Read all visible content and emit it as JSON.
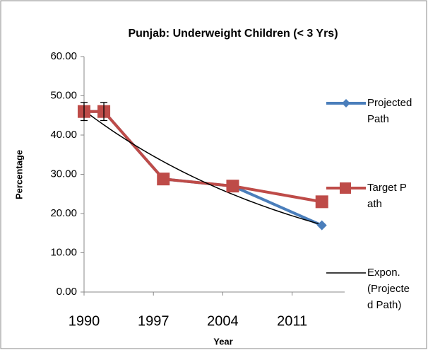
{
  "chart_data": {
    "type": "line",
    "title": "Punjab: Underweight Children (< 3 Yrs)",
    "xlabel": "Year",
    "ylabel": "Percentage",
    "x": [
      1990,
      1992,
      1998,
      2005,
      2014
    ],
    "series": [
      {
        "name": "Projected Path",
        "color": "#4a7ebb",
        "marker": "diamond",
        "values": [
          46,
          46,
          28.8,
          27,
          17
        ]
      },
      {
        "name": "Target Path",
        "color": "#be4b48",
        "marker": "square",
        "values": [
          46,
          46,
          28.8,
          27,
          23
        ],
        "errors": [
          2.3,
          2.3,
          null,
          null,
          null
        ]
      }
    ],
    "trendline": {
      "name": "Expon. (Projected Path)",
      "color": "#000000",
      "series": 0
    },
    "xlim": [
      1990,
      2016.3
    ],
    "xticks": [
      1990,
      1997,
      2004,
      2011
    ],
    "ylim": [
      0,
      60
    ],
    "yticks": [
      {
        "value": 0,
        "label": "0.00"
      },
      {
        "value": 10,
        "label": "10.00"
      },
      {
        "value": 20,
        "label": "20.00"
      },
      {
        "value": 30,
        "label": "30.00"
      },
      {
        "value": 40,
        "label": "40.00"
      },
      {
        "value": 50,
        "label": "50.00"
      },
      {
        "value": 60,
        "label": "60.00"
      }
    ],
    "grid": false,
    "legend": "right"
  }
}
